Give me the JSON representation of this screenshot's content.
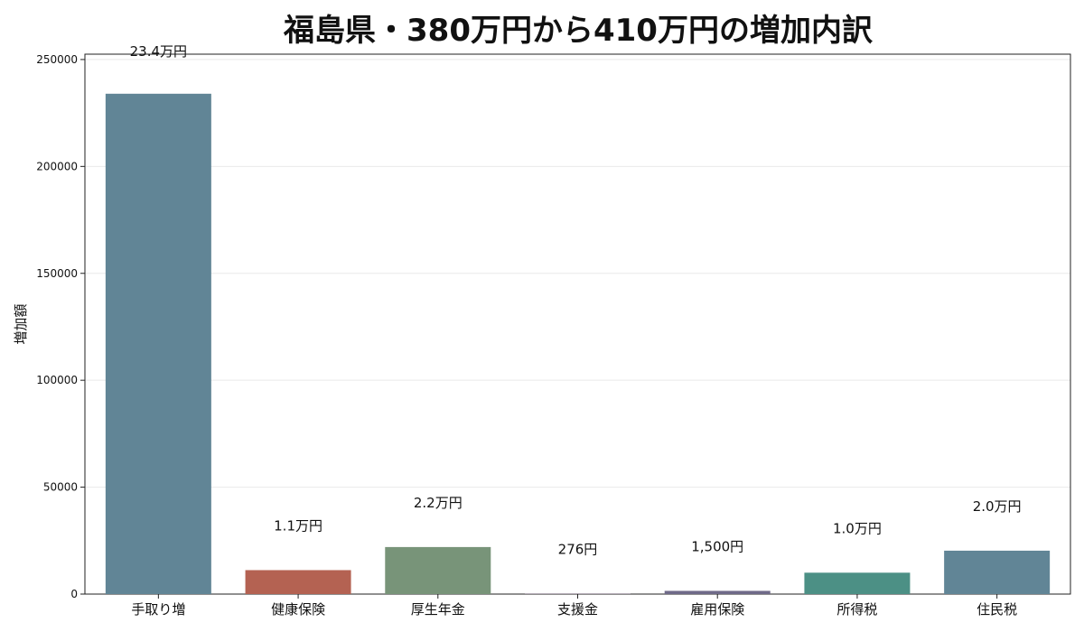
{
  "title": "福島県・380万円から410万円の増加内訳",
  "chart_data": {
    "type": "bar",
    "title": "福島県・380万円から410万円の増加内訳",
    "xlabel": "",
    "ylabel": "増加額",
    "ylim": [
      0,
      252500
    ],
    "yticks": [
      0,
      50000,
      100000,
      150000,
      200000,
      250000
    ],
    "grid": true,
    "categories": [
      "手取り増",
      "健康保険",
      "厚生年金",
      "支援金",
      "雇用保険",
      "所得税",
      "住民税"
    ],
    "values": [
      234000,
      11200,
      22000,
      276,
      1500,
      10000,
      20300
    ],
    "data_labels": [
      "23.4万円",
      "1.1万円",
      "2.2万円",
      "276円",
      "1,500円",
      "1.0万円",
      "2.0万円"
    ],
    "colors": [
      "#618596",
      "#b46252",
      "#789479",
      "#8c7f90",
      "#6f6a88",
      "#4c9085",
      "#618596"
    ]
  }
}
